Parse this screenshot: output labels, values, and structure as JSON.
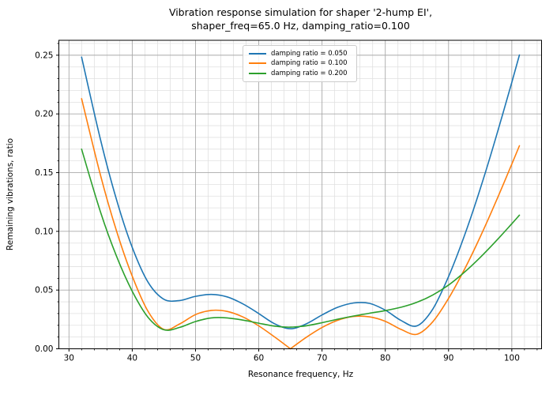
{
  "title": {
    "lines": [
      "Vibration response simulation for shaper '2-hump EI',",
      "shaper_freq=65.0 Hz, damping_ratio=0.100"
    ]
  },
  "colors": {
    "major_grid": "#a9a9a9",
    "minor_grid": "#e0e0e0",
    "spine": "#000000",
    "background": "#ffffff"
  },
  "chart_data": {
    "type": "line",
    "title": "Vibration response simulation for shaper '2-hump EI',\nshaper_freq=65.0 Hz, damping_ratio=0.100",
    "xlabel": "Resonance frequency, Hz",
    "ylabel": "Remaining vibrations, ratio",
    "xlim": [
      28.4,
      104.7
    ],
    "ylim": [
      0,
      0.2627
    ],
    "xticks": [
      30,
      40,
      50,
      60,
      70,
      80,
      90,
      100
    ],
    "yticks": [
      0.0,
      0.05,
      0.1,
      0.15,
      0.2,
      0.25
    ],
    "ytick_labels": [
      "0.00",
      "0.05",
      "0.10",
      "0.15",
      "0.20",
      "0.25"
    ],
    "x_minor_step": 2,
    "y_minor_step": 0.01,
    "grid": "both",
    "legend_position": "upper center",
    "x": [
      32,
      35,
      37.5,
      40,
      42.5,
      45,
      47.5,
      50,
      52.5,
      55,
      57.5,
      60,
      62.5,
      65,
      67.5,
      70,
      72.5,
      75,
      77.5,
      80,
      82.5,
      85,
      87.5,
      90,
      92.5,
      95,
      97.5,
      100,
      101.2
    ],
    "series": [
      {
        "name": "damping ratio = 0.050",
        "color": "#1f77b4",
        "values": [
          0.2484,
          0.1776,
          0.1272,
          0.0863,
          0.0567,
          0.0422,
          0.0411,
          0.0447,
          0.0463,
          0.0442,
          0.0382,
          0.03,
          0.0213,
          0.0171,
          0.0212,
          0.0288,
          0.0354,
          0.039,
          0.0387,
          0.0329,
          0.0241,
          0.0195,
          0.0338,
          0.0615,
          0.0962,
          0.1361,
          0.1801,
          0.227,
          0.2502
        ]
      },
      {
        "name": "damping ratio = 0.100",
        "color": "#ff7f0e",
        "values": [
          0.213,
          0.1473,
          0.1006,
          0.0618,
          0.0319,
          0.0165,
          0.0212,
          0.0291,
          0.0327,
          0.0318,
          0.0271,
          0.0195,
          0.0101,
          0.0,
          0.0097,
          0.0181,
          0.0243,
          0.0275,
          0.0272,
          0.0234,
          0.0165,
          0.0124,
          0.023,
          0.0429,
          0.0675,
          0.0952,
          0.1254,
          0.1573,
          0.1729
        ]
      },
      {
        "name": "damping ratio = 0.200",
        "color": "#2ca02c",
        "values": [
          0.17,
          0.1161,
          0.079,
          0.049,
          0.0268,
          0.0162,
          0.0182,
          0.0232,
          0.0263,
          0.0263,
          0.0244,
          0.0218,
          0.0193,
          0.0184,
          0.0196,
          0.0222,
          0.0252,
          0.0279,
          0.0303,
          0.0325,
          0.0354,
          0.0396,
          0.0458,
          0.0543,
          0.0652,
          0.0778,
          0.0917,
          0.1065,
          0.1138
        ]
      }
    ]
  }
}
